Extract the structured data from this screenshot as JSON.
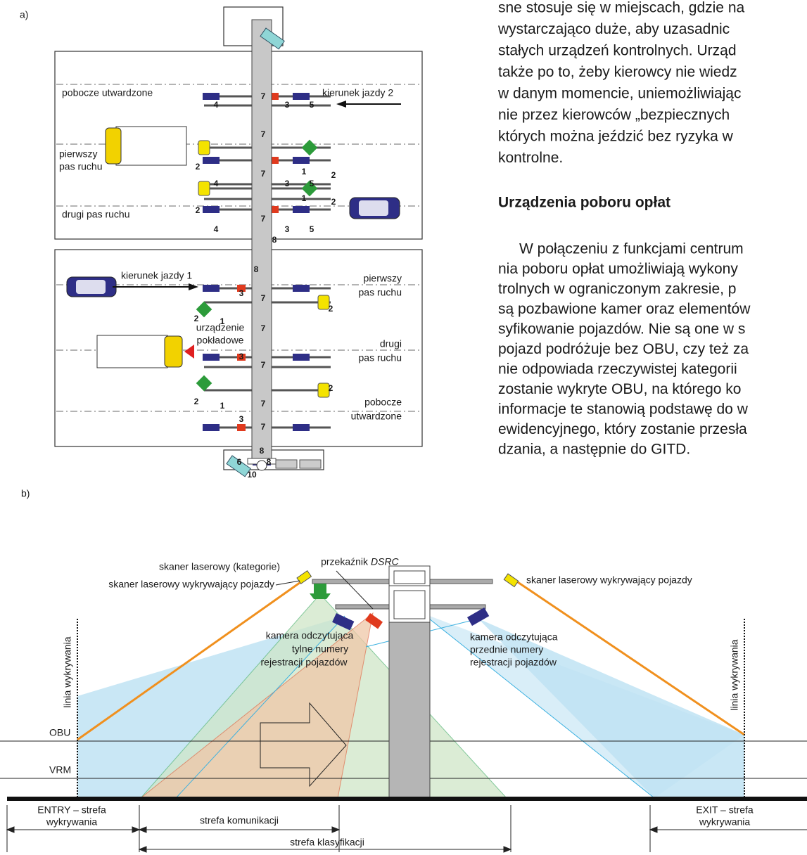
{
  "figure_a": {
    "label": "a)",
    "road_labels": [
      "pobocze utwardzone",
      "kierunek jazdy 2",
      "pierwszy",
      "pas ruchu",
      "drugi pas ruchu",
      "kierunek jazdy 1",
      "pierwszy",
      "pas ruchu",
      "urządzenie",
      "pokładowe",
      "drugi",
      "pas ruchu",
      "pobocze",
      "utwardzone"
    ],
    "markers": [
      "4",
      "3",
      "5",
      "7",
      "7",
      "2",
      "1",
      "2",
      "7",
      "4",
      "3",
      "5",
      "2",
      "1",
      "2",
      "7",
      "4",
      "3",
      "5",
      "8",
      "8",
      "7",
      "3",
      "2",
      "2",
      "1",
      "7",
      "7",
      "3",
      "2",
      "2",
      "1",
      "7",
      "3",
      "7",
      "8",
      "6",
      "8",
      "10"
    ]
  },
  "text": {
    "paragraph_1": [
      "sne stosuje się w miejscach, gdzie na",
      "wystarczająco duże, aby uzasadnic",
      "stałych urządzeń kontrolnych. Urząd",
      "także po to, żeby kierowcy nie wiedz",
      "w danym momencie, uniemożliwiając",
      "nie przez kierowców „bezpiecznych",
      "których można jeździć bez ryzyka w",
      "kontrolne."
    ],
    "heading": "Urządzenia poboru opłat",
    "paragraph_2": [
      "W połączeniu z funkcjami centrum",
      "nia poboru opłat umożliwiają wykony",
      "trolnych w ograniczonym zakresie, p",
      "są pozbawione kamer oraz elementów",
      "syfikowanie pojazdów. Nie są one w s",
      "pojazd podróżuje bez OBU, czy też za",
      "nie odpowiada rzeczywistej kategorii",
      "zostanie wykryte OBU, na którego ko",
      "informacje te stanowią podstawę do w",
      "ewidencyjnego, który zostanie przesła",
      "dzania, a następnie do GITD."
    ]
  },
  "figure_b": {
    "label": "b)",
    "scanner_categories": "skaner laserowy (kategorie)",
    "scanner_left": "skaner laserowy wykrywający pojazdy",
    "relay": "przekaźnik",
    "relay_italic": "DSRC",
    "scanner_right": "skaner laserowy wykrywający pojazdy",
    "camera_rear": [
      "kamera odczytująca",
      "tylne numery",
      "rejestracji pojazdów"
    ],
    "camera_front": [
      "kamera odczytująca",
      "przednie numery",
      "rejestracji pojazdów"
    ],
    "detection_line": "linia wykrywania",
    "obu": "OBU",
    "vrm": "VRM",
    "entry": [
      "ENTRY – strefa",
      "wykrywania"
    ],
    "communication": "strefa komunikacji",
    "classification": "strefa klasyfikacji",
    "exit": [
      "EXIT – strefa",
      "wykrywania"
    ]
  }
}
